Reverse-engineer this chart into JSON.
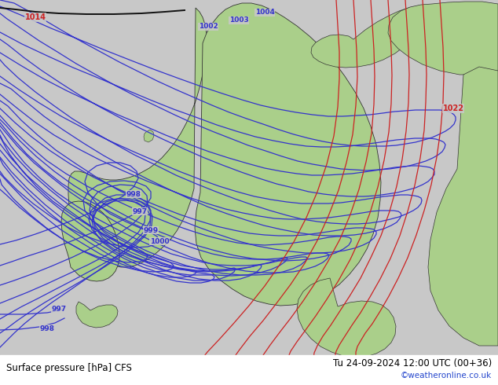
{
  "title_left": "Surface pressure [hPa] CFS",
  "title_right": "Tu 24-09-2024 12:00 UTC (00+36)",
  "credit": "©weatheronline.co.uk",
  "bg_color": "#c8c8c8",
  "land_color": "#aacf8a",
  "border_color": "#333333",
  "blue_color": "#3333cc",
  "red_color": "#cc2222",
  "black_color": "#111111",
  "footer_fontsize": 8.5,
  "credit_fontsize": 7.5,
  "credit_color": "#2244cc",
  "label_fontsize": 7.0,
  "isobar_lw": 0.9
}
